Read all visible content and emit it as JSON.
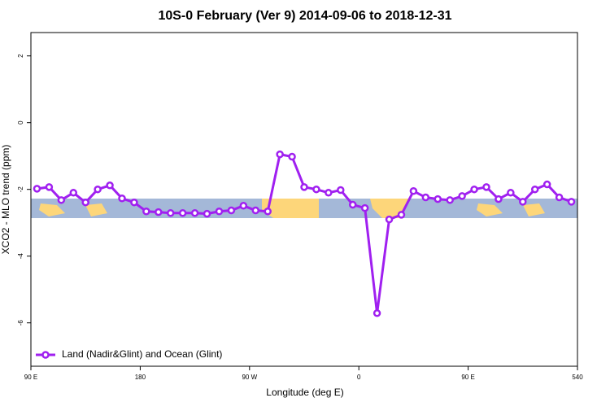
{
  "chart_data": {
    "type": "line",
    "title": "10S-0 February (Ver 9)   2014-09-06 to 2018-12-31",
    "x_label": "Longitude (deg E)",
    "y_label": "XCO2 - MLO trend (ppm)",
    "xlim": [
      90,
      540
    ],
    "xticks": [
      {
        "value": 90,
        "label": "90 E"
      },
      180,
      {
        "value": 270,
        "label": "90 W"
      },
      {
        "value": 360,
        "label": "0"
      },
      {
        "value": 450,
        "label": "90 E"
      },
      540
    ],
    "ylim": [
      -7.3,
      2.7
    ],
    "yticks": [
      2,
      0,
      -2,
      -4,
      -6
    ],
    "legend": "bottomleft",
    "series": [
      {
        "name": "Land (Nadir&Glint) and Ocean (Glint)",
        "color": "#a020f0",
        "x": [
          95,
          105,
          115,
          125,
          135,
          145,
          155,
          165,
          175,
          185,
          195,
          205,
          215,
          225,
          235,
          245,
          255,
          265,
          275,
          285,
          295,
          305,
          315,
          325,
          335,
          345,
          355,
          365,
          375,
          385,
          395,
          405,
          415,
          425,
          435,
          445,
          455,
          465,
          475,
          485,
          495,
          505,
          515,
          525,
          535
        ],
        "values": [
          -1.98,
          -1.93,
          -2.32,
          -2.1,
          -2.39,
          -2.0,
          -1.88,
          -2.27,
          -2.39,
          -2.66,
          -2.68,
          -2.71,
          -2.71,
          -2.71,
          -2.73,
          -2.66,
          -2.63,
          -2.49,
          -2.63,
          -2.66,
          -0.95,
          -1.02,
          -1.93,
          -2.0,
          -2.1,
          -2.02,
          -2.46,
          -2.56,
          -5.71,
          -2.9,
          -2.76,
          -2.05,
          -2.24,
          -2.29,
          -2.32,
          -2.2,
          -2.0,
          -1.93,
          -2.29,
          -2.1,
          -2.37,
          -2.0,
          -1.85,
          -2.24,
          -2.37
        ]
      }
    ]
  }
}
